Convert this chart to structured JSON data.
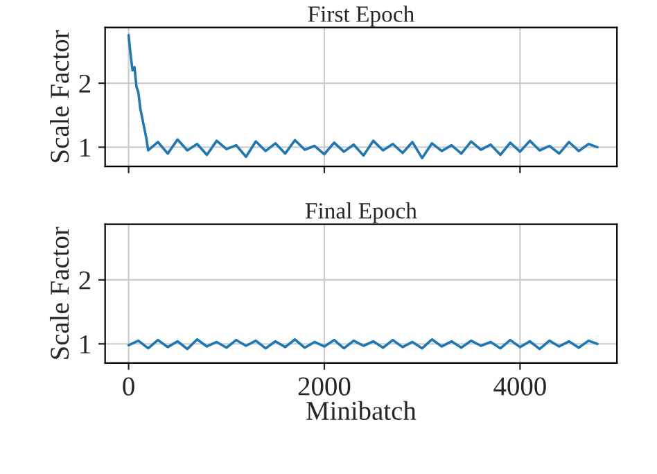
{
  "chart_data": [
    {
      "type": "line",
      "title": "First Epoch",
      "ylabel": "Scale Factor",
      "x": [
        0,
        20,
        40,
        60,
        80,
        100,
        120,
        140,
        160,
        180,
        200,
        300,
        400,
        500,
        600,
        700,
        800,
        900,
        1000,
        1100,
        1200,
        1300,
        1400,
        1500,
        1600,
        1700,
        1800,
        1900,
        2000,
        2100,
        2200,
        2300,
        2400,
        2500,
        2600,
        2700,
        2800,
        2900,
        3000,
        3100,
        3200,
        3300,
        3400,
        3500,
        3600,
        3700,
        3800,
        3900,
        4000,
        4100,
        4200,
        4300,
        4400,
        4500,
        4600,
        4700,
        4790
      ],
      "series": [
        {
          "color": "#1f77b4",
          "values": [
            2.75,
            2.45,
            2.2,
            2.25,
            1.95,
            1.85,
            1.6,
            1.45,
            1.3,
            1.15,
            0.95,
            1.08,
            0.9,
            1.12,
            0.95,
            1.05,
            0.88,
            1.1,
            0.97,
            1.03,
            0.85,
            1.09,
            0.94,
            1.06,
            0.9,
            1.11,
            0.96,
            1.02,
            0.89,
            1.07,
            0.93,
            1.04,
            0.87,
            1.1,
            0.95,
            1.05,
            0.91,
            1.08,
            0.83,
            1.06,
            0.94,
            1.03,
            0.9,
            1.09,
            0.96,
            1.04,
            0.88,
            1.07,
            0.93,
            1.1,
            0.95,
            1.02,
            0.9,
            1.08,
            0.94,
            1.05,
            1.0
          ]
        }
      ],
      "xlim": [
        -240,
        4990
      ],
      "ylim": [
        0.7,
        2.87
      ],
      "xticks": [
        0,
        2000,
        4000
      ],
      "yticks": [
        1,
        2
      ],
      "grid": true,
      "tick_labels": "y",
      "line_style": "solid",
      "marker": "none"
    },
    {
      "type": "line",
      "title": "Final Epoch",
      "ylabel": "Scale Factor",
      "xlabel": "Minibatch",
      "x": [
        0,
        100,
        200,
        300,
        400,
        500,
        600,
        700,
        800,
        900,
        1000,
        1100,
        1200,
        1300,
        1400,
        1500,
        1600,
        1700,
        1800,
        1900,
        2000,
        2100,
        2200,
        2300,
        2400,
        2500,
        2600,
        2700,
        2800,
        2900,
        3000,
        3100,
        3200,
        3300,
        3400,
        3500,
        3600,
        3700,
        3800,
        3900,
        4000,
        4100,
        4200,
        4300,
        4400,
        4500,
        4600,
        4700,
        4790
      ],
      "series": [
        {
          "color": "#1f77b4",
          "values": [
            0.98,
            1.05,
            0.93,
            1.06,
            0.95,
            1.04,
            0.92,
            1.07,
            0.96,
            1.03,
            0.94,
            1.06,
            0.97,
            1.05,
            0.93,
            1.04,
            0.95,
            1.07,
            0.94,
            1.03,
            0.96,
            1.06,
            0.93,
            1.05,
            0.97,
            1.04,
            0.94,
            1.06,
            0.95,
            1.03,
            0.93,
            1.07,
            0.96,
            1.04,
            0.94,
            1.05,
            0.97,
            1.03,
            0.93,
            1.06,
            0.95,
            1.04,
            0.92,
            1.05,
            0.96,
            1.04,
            0.94,
            1.05,
            1.0
          ]
        }
      ],
      "xlim": [
        -240,
        4990
      ],
      "ylim": [
        0.7,
        2.87
      ],
      "xticks": [
        0,
        2000,
        4000
      ],
      "yticks": [
        1,
        2
      ],
      "grid": true,
      "line_style": "solid",
      "marker": "none"
    }
  ]
}
